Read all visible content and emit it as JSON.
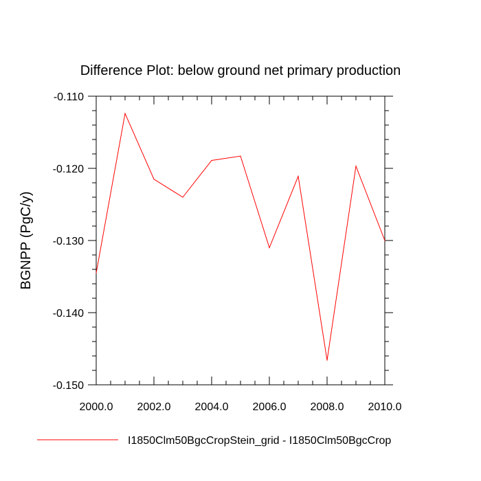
{
  "chart_data": {
    "type": "line",
    "title": "Difference Plot: below ground net primary production",
    "xlabel": "",
    "ylabel": "BGNPP  (PgC/y)",
    "xlim": [
      2000,
      2010
    ],
    "ylim": [
      -0.15,
      -0.11
    ],
    "x_ticks": [
      "2000.0",
      "2002.0",
      "2004.0",
      "2006.0",
      "2008.0",
      "2010.0"
    ],
    "y_ticks": [
      "-0.110",
      "-0.120",
      "-0.130",
      "-0.140",
      "-0.150"
    ],
    "grid": false,
    "legend_position": "bottom",
    "series": [
      {
        "name": "I1850Clm50BgcCropStein_grid - I1850Clm50BgcCrop",
        "color": "#ff0000",
        "x": [
          2000,
          2001,
          2002,
          2003,
          2004,
          2005,
          2006,
          2007,
          2008,
          2009,
          2010
        ],
        "y": [
          -0.1345,
          -0.1124,
          -0.1215,
          -0.124,
          -0.1189,
          -0.1183,
          -0.131,
          -0.1211,
          -0.1466,
          -0.1197,
          -0.13
        ]
      }
    ]
  }
}
